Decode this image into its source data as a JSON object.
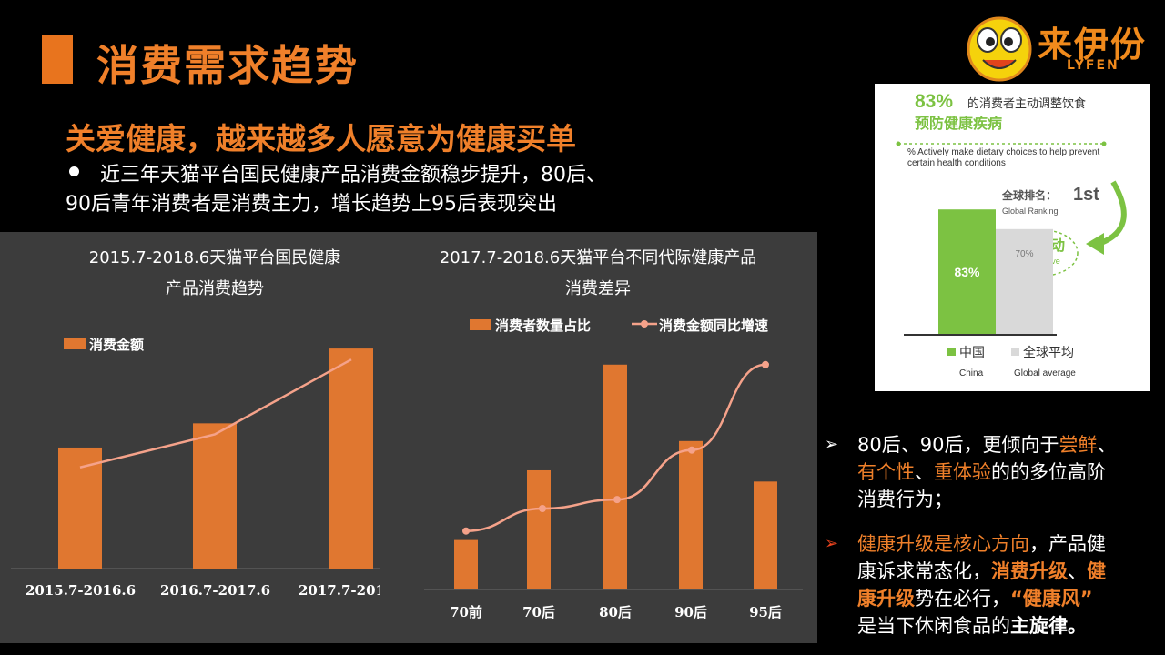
{
  "page": {
    "title": "消费需求趋势",
    "subtitle": "关爱健康，越来越多人愿意为健康买单",
    "bullet_line1": "近三年天猫平台国民健康产品消费金额稳步提升，80后、",
    "bullet_line2": "90后青年消费者是消费主力，增长趋势上95后表现突出"
  },
  "logo": {
    "name": "来伊份",
    "sub": "LYFEN"
  },
  "infographic": {
    "headline_pct": "83%",
    "headline_text": "的消费者主动调整饮食",
    "headline_text2": "预防健康疾病",
    "english": "% Actively make dietary choices to help prevent certain health conditions",
    "ranking_label": "全球排名：",
    "ranking_value": "1st",
    "ranking_en": "Global Ranking",
    "proactive_cn": "更主动",
    "proactive_en": "Proactive",
    "bars": [
      {
        "label_cn": "中国",
        "label_en": "China",
        "value": 83,
        "value_label": "83%",
        "color": "#7cc242"
      },
      {
        "label_cn": "全球平均",
        "label_en": "Global average",
        "value": 70,
        "value_label": "70%",
        "color": "#d9d9d9"
      }
    ]
  },
  "right_text": {
    "p1_a": "80后、90后，更倾向于",
    "p1_b": "尝鲜",
    "p1_c": "、",
    "p1_d": "有个性",
    "p1_e": "、",
    "p1_f": "重体验",
    "p1_g": "的的多位高阶",
    "p1_h": "消费行为；",
    "p2_a": "健康升级是核心方向",
    "p2_b": "，产品健",
    "p2_c": "康诉求常态化，",
    "p2_d": "消费升级",
    "p2_e": "、",
    "p2_f": "健",
    "p2_g": "康升级",
    "p2_h": "势在必行，",
    "p2_i": "“健康风”",
    "p2_j": "是当下休闲食品的",
    "p2_k": "主旋律",
    "p2_l": "。"
  },
  "chart_data": [
    {
      "type": "bar",
      "title_line1": "2015.7-2018.6天猫平台国民健康",
      "title_line2": "产品消费趋势",
      "legend": "消费金额",
      "categories": [
        "2015.7-2016.6",
        "2016.7-2017.6",
        "2017.7-201"
      ],
      "series": [
        {
          "name": "消费金额",
          "values": [
            55,
            66,
            100
          ],
          "color": "#e07730"
        }
      ],
      "trend_line": {
        "values": [
          46,
          61,
          95
        ],
        "color": "#f5a28a"
      },
      "ylim": [
        0,
        105
      ]
    },
    {
      "type": "bar",
      "title_line1": "2017.7-2018.6天猫平台不同代际健康产品",
      "title_line2": "消费差异",
      "categories": [
        "70前",
        "70后",
        "80后",
        "90后",
        "95后"
      ],
      "series": [
        {
          "name": "消费者数量占比",
          "type": "bar",
          "values": [
            22,
            53,
            100,
            66,
            48
          ],
          "color": "#e07730"
        },
        {
          "name": "消费金额同比增速",
          "type": "line",
          "values": [
            26,
            36,
            40,
            62,
            100
          ],
          "color": "#f5a28a"
        }
      ],
      "ylim": [
        0,
        108
      ]
    }
  ]
}
